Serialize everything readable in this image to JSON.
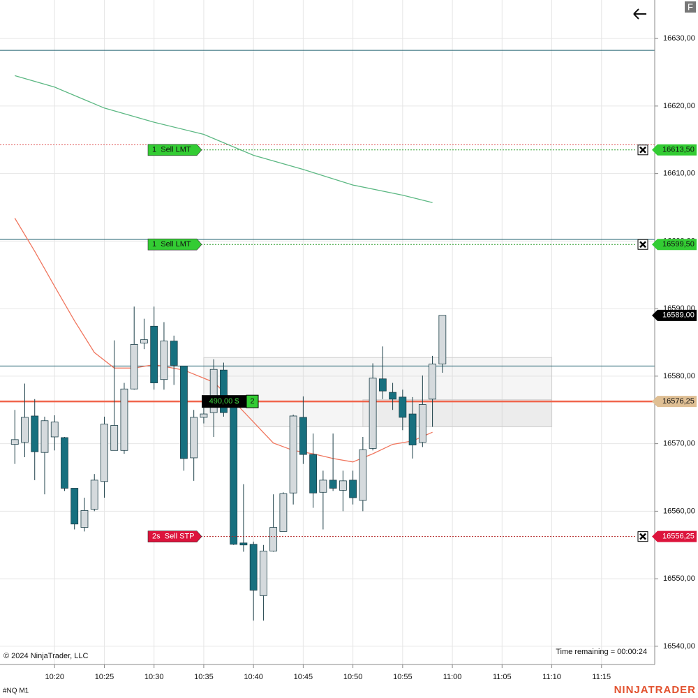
{
  "chart_data": {
    "type": "candlestick",
    "instrument": "#NQ M1",
    "copyright": "© 2024 NinjaTrader, LLC",
    "time_remaining": "Time remaining = 00:00:24",
    "brand": "NINJATRADER",
    "menu_icon": "F",
    "up_color": "#d5dadd",
    "down_color": "#17707f",
    "x": [
      "10:16",
      "10:17",
      "10:18",
      "10:19",
      "10:20",
      "10:21",
      "10:22",
      "10:23",
      "10:24",
      "10:25",
      "10:26",
      "10:27",
      "10:28",
      "10:29",
      "10:30",
      "10:31",
      "10:32",
      "10:33",
      "10:34",
      "10:35",
      "10:36",
      "10:37",
      "10:38",
      "10:39",
      "10:40",
      "10:41",
      "10:42",
      "10:43",
      "10:44",
      "10:45",
      "10:46",
      "10:47",
      "10:48",
      "10:49",
      "10:50",
      "10:51",
      "10:52",
      "10:53",
      "10:54",
      "10:55",
      "10:56",
      "10:57",
      "10:58",
      "10:59"
    ],
    "open": [
      16569.9,
      16570.2,
      16574.1,
      16568.7,
      16571,
      16570.9,
      16563.4,
      16557.6,
      16560.3,
      16564.4,
      16569,
      16569,
      16578.1,
      16584.9,
      16587.4,
      16579.5,
      16585.2,
      16581.5,
      16567.9,
      16573.9,
      16574.6,
      16580.9,
      16576.4,
      16555.3,
      16555.1,
      16547.5,
      16554.1,
      16557,
      16562.7,
      16573.9,
      16568.4,
      16562.8,
      16564.6,
      16563.1,
      16564.6,
      16561.6,
      16569.3,
      16579.6,
      16577.6,
      16576.9,
      16574.4,
      16570.2,
      16576.6,
      16581.8
    ],
    "high": [
      16575,
      16578.9,
      16576.6,
      16574,
      16574.2,
      16571,
      16563.4,
      16562,
      16565.5,
      16574,
      16585.3,
      16579,
      16590.3,
      16588.5,
      16590.3,
      16588,
      16586,
      16581.5,
      16575,
      16577,
      16582.5,
      16582,
      16577,
      16564,
      16555.5,
      16555,
      16562.5,
      16562.8,
      16574.3,
      16577,
      16571.5,
      16566,
      16571.5,
      16566,
      16566,
      16571,
      16581.9,
      16584.4,
      16579,
      16578,
      16576.9,
      16580.1,
      16583,
      16589
    ],
    "low": [
      16567,
      16568,
      16564.6,
      16562.5,
      16569,
      16563,
      16557.3,
      16557,
      16560,
      16562,
      16569,
      16568.5,
      16578,
      16584,
      16578,
      16578,
      16578.7,
      16566,
      16564.5,
      16573,
      16571,
      16574,
      16555,
      16554,
      16543.8,
      16543.8,
      16554,
      16557,
      16561,
      16567,
      16560.5,
      16557.3,
      16563,
      16560,
      16561,
      16560,
      16569,
      16576.6,
      16575,
      16572,
      16567.8,
      16569.5,
      16572.5,
      16580.5
    ],
    "close": [
      16570.6,
      16573.9,
      16568.8,
      16573.4,
      16573.2,
      16563.4,
      16558.1,
      16560.1,
      16564.6,
      16572.9,
      16572.7,
      16578.1,
      16584.7,
      16585.4,
      16579,
      16585.2,
      16581.6,
      16567.8,
      16573.9,
      16574.4,
      16581,
      16574.6,
      16555.1,
      16555,
      16548.3,
      16554.1,
      16557.6,
      16562.6,
      16574.1,
      16568.4,
      16562.7,
      16564.6,
      16563.4,
      16564.5,
      16562,
      16569.1,
      16579.7,
      16577.8,
      16576.6,
      16573.9,
      16569.8,
      16575.8,
      16581.8,
      16589
    ],
    "lines": [
      {
        "color": "#5cb883",
        "x": [
          "10:16",
          "10:20",
          "10:25",
          "10:30",
          "10:35",
          "10:40",
          "10:45",
          "10:50",
          "10:55",
          "10:58"
        ],
        "values": [
          16624.5,
          16622.8,
          16619.7,
          16617.6,
          16615.8,
          16612.7,
          16610.6,
          16608.3,
          16606.8,
          16605.7
        ]
      },
      {
        "color": "#f0765e",
        "x": [
          "10:16",
          "10:18",
          "10:20",
          "10:22",
          "10:24",
          "10:26",
          "10:28",
          "10:30",
          "10:33",
          "10:36",
          "10:38",
          "10:40",
          "10:42",
          "10:44",
          "10:46",
          "10:48",
          "10:50",
          "10:52",
          "10:54",
          "10:56",
          "10:58"
        ],
        "values": [
          16603.4,
          16598.5,
          16593.3,
          16588.2,
          16583.5,
          16581.2,
          16581.2,
          16581.7,
          16580.9,
          16579.1,
          16576.3,
          16573.2,
          16570.1,
          16569,
          16568.5,
          16567.8,
          16567.3,
          16568.5,
          16569.9,
          16570.4,
          16571.7
        ]
      }
    ],
    "levels": [
      {
        "value": 16628.25,
        "color": "#1d5f6e",
        "style": "solid",
        "width": 1
      },
      {
        "value": 16614.25,
        "color": "#e05a5a",
        "style": "dotted",
        "width": 1
      },
      {
        "value": 16600.25,
        "color": "#1d5f6e",
        "style": "solid",
        "width": 1
      },
      {
        "value": 16581.5,
        "color": "#1d5f6e",
        "style": "solid",
        "width": 1
      },
      {
        "value": 16576.25,
        "color": "#f0654c",
        "style": "solid",
        "width": 2.5
      }
    ],
    "zones": [
      {
        "x": [
          "10:35",
          "11:10"
        ],
        "values": [
          16582.75,
          16572.5
        ]
      },
      {
        "x": [
          "10:51",
          "11:10"
        ],
        "values": [
          16576.5,
          16572.5
        ]
      }
    ],
    "orders": [
      {
        "label": "1  Sell LMT",
        "value": 16613.5,
        "price_label": "16613,50",
        "color": "#33cc33",
        "line_color": "#2e9e2e"
      },
      {
        "label": "1  Sell LMT",
        "value": 16599.5,
        "price_label": "16599,50",
        "color": "#33cc33",
        "line_color": "#2e9e2e"
      },
      {
        "label": "2s  Sell STP",
        "value": 16556.25,
        "price_label": "16556,25",
        "color": "#dc143c",
        "line_color": "#b02020"
      }
    ],
    "position": {
      "value": 16576.25,
      "pnl": "490,00 $",
      "quantity": 2,
      "price_label": "16576,25",
      "color": "#dfbf94"
    },
    "current": {
      "value": 16589,
      "label": "16589,00"
    },
    "xlim": [
      "10:15",
      "11:20"
    ],
    "xticks": [
      "10:20",
      "10:25",
      "10:30",
      "10:35",
      "10:40",
      "10:45",
      "10:50",
      "10:55",
      "11:00",
      "11:05",
      "11:10",
      "11:15"
    ],
    "ylim": [
      16537.3,
      16635.7
    ],
    "yticks": [
      {
        "value": 16540,
        "label": "16540,00"
      },
      {
        "value": 16550,
        "label": "16550,00"
      },
      {
        "value": 16560,
        "label": "16560,00"
      },
      {
        "value": 16570,
        "label": "16570,00"
      },
      {
        "value": 16580,
        "label": "16580,00"
      },
      {
        "value": 16590,
        "label": "16590,00"
      },
      {
        "value": 16600,
        "label": "16600,00"
      },
      {
        "value": 16610,
        "label": "16610,00"
      },
      {
        "value": 16620,
        "label": "16620,00"
      },
      {
        "value": 16630,
        "label": "16630,00"
      }
    ],
    "grid": true
  }
}
